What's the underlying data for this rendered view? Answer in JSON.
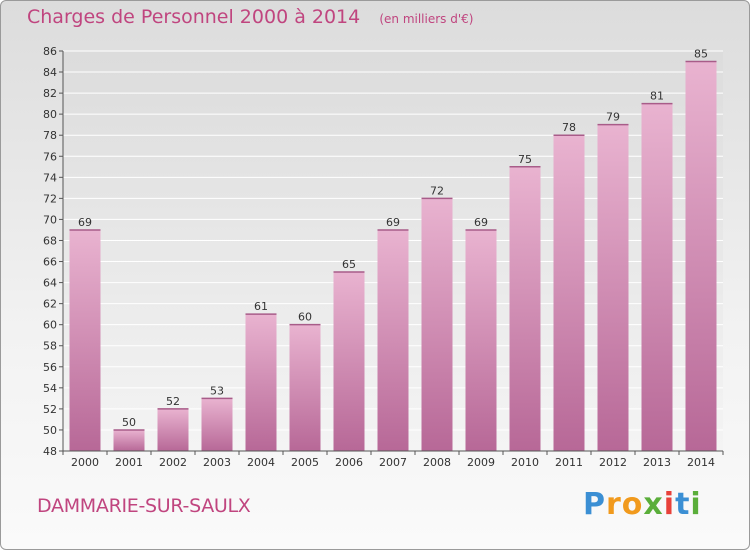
{
  "title": "Charges de Personnel 2000 à 2014",
  "subtitle": "(en milliers d'€)",
  "commune": "DAMMARIE-SUR-SAULX",
  "brand": {
    "letters": [
      "P",
      "r",
      "o",
      "x",
      "i",
      "t",
      "i"
    ],
    "colors": [
      "#3b8fd4",
      "#f19a1d",
      "#f19a1d",
      "#5aae3a",
      "#e8413a",
      "#3b8fd4",
      "#5aae3a"
    ]
  },
  "colors": {
    "bar_light": "#e9b3d0",
    "bar_dark": "#b76897",
    "accent": "#c0457f"
  },
  "chart_data": {
    "type": "bar",
    "categories": [
      "2000",
      "2001",
      "2002",
      "2003",
      "2004",
      "2005",
      "2006",
      "2007",
      "2008",
      "2009",
      "2010",
      "2011",
      "2012",
      "2013",
      "2014"
    ],
    "values": [
      69,
      50,
      52,
      53,
      61,
      60,
      65,
      69,
      72,
      69,
      75,
      78,
      79,
      81,
      85
    ],
    "value_labels": [
      "69",
      "50",
      "52",
      "53",
      "61",
      "60",
      "65",
      "69",
      "72",
      "69",
      "75",
      "78",
      "79",
      "81",
      "85"
    ],
    "ylim": [
      48,
      86
    ],
    "yticks": [
      "48",
      "50",
      "52",
      "54",
      "56",
      "58",
      "60",
      "62",
      "64",
      "66",
      "68",
      "70",
      "72",
      "74",
      "76",
      "78",
      "80",
      "82",
      "84",
      "86"
    ],
    "grid": true,
    "legend": "none",
    "xlabel": "",
    "ylabel": ""
  }
}
